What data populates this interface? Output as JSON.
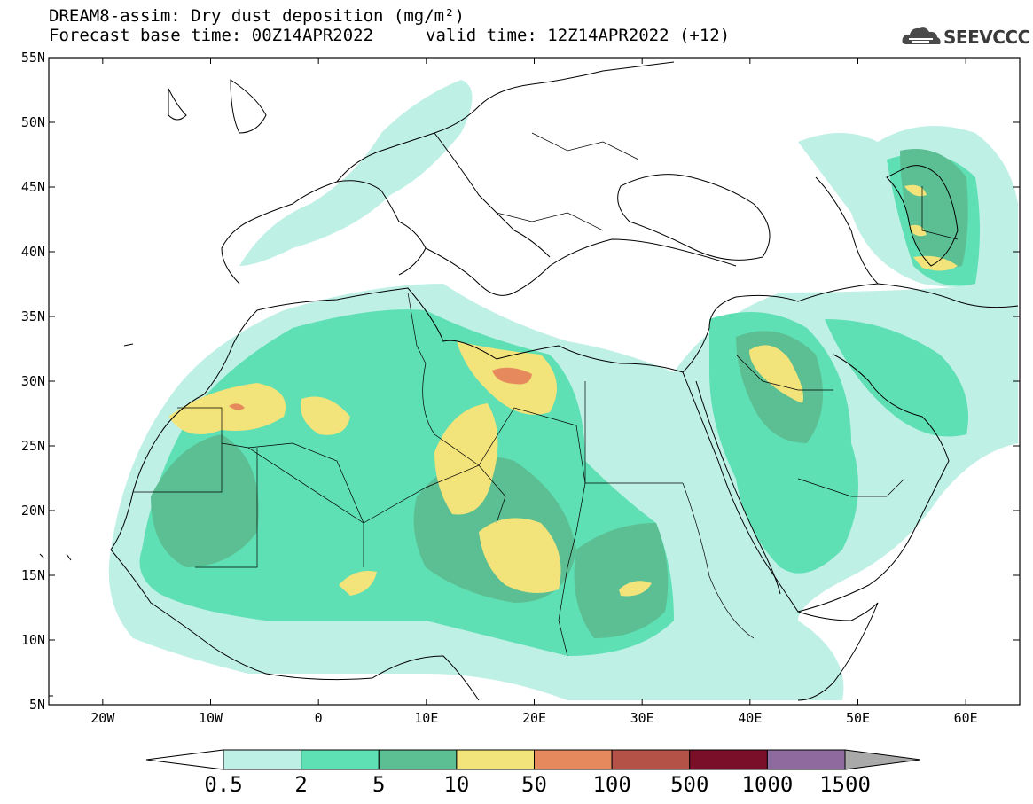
{
  "header": {
    "title": "DREAM8-assim: Dry dust deposition (mg/m²)",
    "base_time": "Forecast base time: 00Z14APR2022",
    "valid_time": "valid time: 12Z14APR2022 (+12)",
    "logo_text": "SEEVCCC",
    "logo_icon": "cloud-logo-icon"
  },
  "map": {
    "lat_range": [
      5,
      55
    ],
    "lon_range": [
      -25,
      65
    ],
    "lat_labels": [
      "55N",
      "50N",
      "45N",
      "40N",
      "35N",
      "30N",
      "25N",
      "20N",
      "15N",
      "10N",
      "5N"
    ],
    "lon_labels": [
      "20W",
      "10W",
      "0",
      "10E",
      "20E",
      "30E",
      "40E",
      "50E",
      "60E"
    ],
    "colors": {
      "ocean": "#ffffff",
      "land": "#ffffff",
      "coast": "#000000"
    }
  },
  "colorbar": {
    "labels": [
      "0.5",
      "2",
      "5",
      "10",
      "50",
      "100",
      "500",
      "1000",
      "1500"
    ],
    "colors": [
      "#bff0e6",
      "#5ee0b4",
      "#5bbf93",
      "#f2e37a",
      "#e68a5e",
      "#b45247",
      "#7a0f2a",
      "#8f6a9e",
      "#a9a9a9"
    ]
  }
}
